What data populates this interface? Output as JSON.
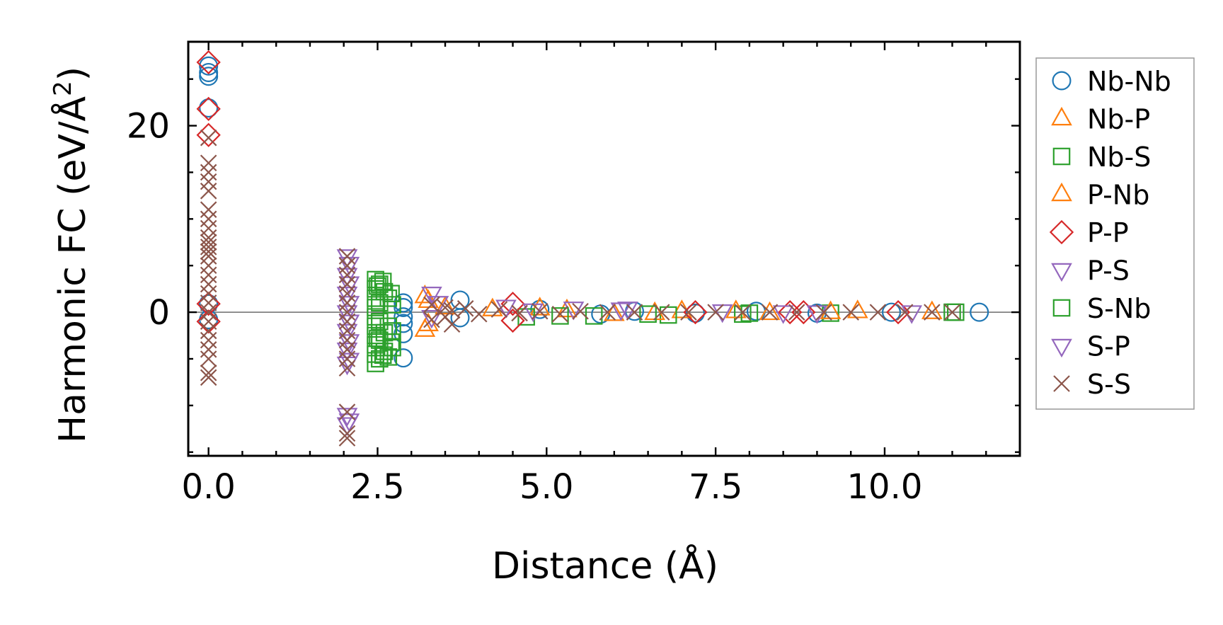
{
  "chart_data": {
    "type": "scatter",
    "title": "",
    "xlabel": "Distance (Å)",
    "ylabel_main": "Harmonic FC (eV/Å",
    "ylabel_sup": "2",
    "ylabel_close": ")",
    "xlim": [
      -0.3,
      12.0
    ],
    "ylim": [
      -15.4,
      29.0
    ],
    "xticks": [
      0.0,
      2.5,
      5.0,
      7.5,
      10.0
    ],
    "xtick_labels": [
      "0.0",
      "2.5",
      "5.0",
      "7.5",
      "10.0"
    ],
    "x_minor_step": 0.5,
    "yticks": [
      0,
      20
    ],
    "ytick_labels": [
      "0",
      "20"
    ],
    "y_minor_step": 5,
    "zero_line": true,
    "legend_position": "right, outside plot",
    "series": [
      {
        "name": "Nb-Nb",
        "marker": "circle",
        "color": "#1f77b4",
        "points": [
          [
            0.0,
            26.4
          ],
          [
            0.0,
            25.7
          ],
          [
            0.0,
            25.3
          ],
          [
            0.0,
            21.9
          ],
          [
            0.0,
            0.9
          ],
          [
            0.0,
            -0.8
          ],
          [
            2.88,
            1.0
          ],
          [
            2.88,
            0.5
          ],
          [
            2.88,
            -0.5
          ],
          [
            2.88,
            -1.2
          ],
          [
            2.88,
            -2.3
          ],
          [
            2.88,
            -4.9
          ],
          [
            3.72,
            1.3
          ],
          [
            3.72,
            -0.6
          ],
          [
            4.9,
            0.3
          ],
          [
            5.8,
            -0.2
          ],
          [
            6.3,
            0.1
          ],
          [
            7.2,
            -0.1
          ],
          [
            8.1,
            0.1
          ],
          [
            9.0,
            -0.1
          ],
          [
            10.1,
            0.0
          ],
          [
            11.4,
            0.0
          ]
        ]
      },
      {
        "name": "Nb-P",
        "marker": "triangle-up",
        "color": "#ff7f0e",
        "points": [
          [
            3.2,
            1.7
          ],
          [
            3.2,
            -1.9
          ],
          [
            3.5,
            0.5
          ],
          [
            4.9,
            0.4
          ],
          [
            6.0,
            -0.2
          ],
          [
            7.0,
            0.1
          ],
          [
            8.3,
            -0.1
          ],
          [
            9.6,
            0.1
          ],
          [
            10.7,
            0.0
          ]
        ]
      },
      {
        "name": "Nb-S",
        "marker": "square",
        "color": "#2ca02c",
        "points": [
          [
            2.47,
            3.5
          ],
          [
            2.47,
            2.5
          ],
          [
            2.47,
            1.5
          ],
          [
            2.47,
            0.5
          ],
          [
            2.47,
            -0.5
          ],
          [
            2.47,
            -1.5
          ],
          [
            2.47,
            -2.5
          ],
          [
            2.47,
            -3.5
          ],
          [
            2.47,
            -4.5
          ],
          [
            2.47,
            -5.5
          ],
          [
            2.53,
            3.0
          ],
          [
            2.53,
            1.0
          ],
          [
            2.53,
            -1.0
          ],
          [
            2.53,
            -3.0
          ],
          [
            2.53,
            -5.0
          ],
          [
            2.6,
            2.2
          ],
          [
            2.6,
            -2.2
          ],
          [
            2.6,
            -4.2
          ],
          [
            2.66,
            1.5
          ],
          [
            2.66,
            -1.5
          ],
          [
            2.66,
            -4.8
          ],
          [
            2.72,
            0.8
          ],
          [
            2.72,
            -2.0
          ],
          [
            2.72,
            -3.8
          ],
          [
            4.7,
            -0.5
          ],
          [
            5.7,
            -0.4
          ],
          [
            6.8,
            -0.3
          ],
          [
            7.9,
            -0.2
          ],
          [
            9.2,
            -0.1
          ],
          [
            11.0,
            0.0
          ]
        ]
      },
      {
        "name": "P-Nb",
        "marker": "triangle-up",
        "color": "#ff7f0e",
        "points": [
          [
            3.25,
            1.2
          ],
          [
            3.25,
            -1.3
          ],
          [
            4.2,
            0.3
          ],
          [
            5.3,
            0.2
          ],
          [
            6.6,
            -0.1
          ],
          [
            7.8,
            0.1
          ],
          [
            9.2,
            0.0
          ]
        ]
      },
      {
        "name": "P-P",
        "marker": "diamond",
        "color": "#d62728",
        "points": [
          [
            0.0,
            26.8
          ],
          [
            0.0,
            21.8
          ],
          [
            0.0,
            19.0
          ],
          [
            0.0,
            0.9
          ],
          [
            0.0,
            -1.0
          ],
          [
            4.5,
            0.9
          ],
          [
            4.5,
            -0.9
          ],
          [
            7.2,
            0.0
          ],
          [
            8.6,
            0.0
          ],
          [
            8.8,
            0.0
          ],
          [
            10.2,
            0.0
          ]
        ]
      },
      {
        "name": "P-S",
        "marker": "triangle-down",
        "color": "#9467bd",
        "points": [
          [
            2.05,
            6.0
          ],
          [
            2.05,
            4.0
          ],
          [
            2.05,
            2.0
          ],
          [
            2.05,
            0.0
          ],
          [
            2.05,
            -2.0
          ],
          [
            2.05,
            -4.0
          ],
          [
            2.05,
            -5.5
          ],
          [
            2.05,
            -11.0
          ],
          [
            2.05,
            -12.0
          ],
          [
            3.3,
            2.0
          ],
          [
            3.3,
            -0.5
          ],
          [
            4.4,
            0.6
          ],
          [
            5.4,
            0.4
          ],
          [
            6.1,
            0.3
          ],
          [
            7.6,
            0.1
          ],
          [
            9.0,
            0.0
          ],
          [
            10.4,
            0.0
          ]
        ]
      },
      {
        "name": "S-Nb",
        "marker": "square",
        "color": "#2ca02c",
        "points": [
          [
            2.5,
            2.8
          ],
          [
            2.5,
            -2.8
          ],
          [
            2.58,
            3.3
          ],
          [
            2.58,
            -4.6
          ],
          [
            2.7,
            2.0
          ],
          [
            2.7,
            -3.2
          ],
          [
            5.2,
            -0.4
          ],
          [
            6.5,
            -0.2
          ],
          [
            8.0,
            -0.1
          ],
          [
            11.05,
            0.0
          ]
        ]
      },
      {
        "name": "S-P",
        "marker": "triangle-down",
        "color": "#9467bd",
        "points": [
          [
            2.08,
            5.2
          ],
          [
            2.08,
            3.1
          ],
          [
            2.08,
            1.0
          ],
          [
            2.08,
            -1.0
          ],
          [
            2.08,
            -3.1
          ],
          [
            2.08,
            -5.1
          ],
          [
            2.08,
            -11.6
          ],
          [
            3.4,
            1.0
          ],
          [
            4.8,
            0.2
          ],
          [
            6.2,
            0.4
          ],
          [
            8.5,
            0.0
          ]
        ]
      },
      {
        "name": "S-S",
        "marker": "x",
        "color": "#8c564b",
        "points": [
          [
            0.0,
            18.7
          ],
          [
            0.0,
            16.0
          ],
          [
            0.0,
            15.0
          ],
          [
            0.0,
            14.0
          ],
          [
            0.0,
            13.0
          ],
          [
            0.0,
            11.0
          ],
          [
            0.0,
            10.0
          ],
          [
            0.0,
            9.0
          ],
          [
            0.0,
            8.0
          ],
          [
            0.0,
            7.5
          ],
          [
            0.0,
            7.0
          ],
          [
            0.0,
            6.5
          ],
          [
            0.0,
            6.0
          ],
          [
            0.0,
            5.0
          ],
          [
            0.0,
            4.0
          ],
          [
            0.0,
            3.0
          ],
          [
            0.0,
            2.0
          ],
          [
            0.0,
            1.0
          ],
          [
            0.0,
            0.0
          ],
          [
            0.0,
            -1.0
          ],
          [
            0.0,
            -2.0
          ],
          [
            0.0,
            -3.0
          ],
          [
            0.0,
            -4.0
          ],
          [
            0.0,
            -5.0
          ],
          [
            0.0,
            -6.5
          ],
          [
            0.0,
            -7.0
          ],
          [
            2.05,
            6.0
          ],
          [
            2.05,
            5.0
          ],
          [
            2.05,
            4.0
          ],
          [
            2.05,
            3.0
          ],
          [
            2.05,
            2.0
          ],
          [
            2.05,
            1.0
          ],
          [
            2.05,
            0.0
          ],
          [
            2.05,
            -1.0
          ],
          [
            2.05,
            -2.0
          ],
          [
            2.05,
            -3.0
          ],
          [
            2.05,
            -4.0
          ],
          [
            2.05,
            -5.0
          ],
          [
            2.05,
            -6.0
          ],
          [
            2.05,
            -10.7
          ],
          [
            2.05,
            -13.0
          ],
          [
            2.05,
            -13.5
          ],
          [
            3.3,
            0.8
          ],
          [
            3.3,
            -0.8
          ],
          [
            3.5,
            0.5
          ],
          [
            3.5,
            -0.5
          ],
          [
            3.6,
            0.2
          ],
          [
            3.6,
            -1.3
          ],
          [
            3.8,
            0.4
          ],
          [
            4.0,
            -0.2
          ],
          [
            4.3,
            0.3
          ],
          [
            4.6,
            -0.1
          ],
          [
            4.9,
            0.1
          ],
          [
            5.2,
            -0.2
          ],
          [
            5.5,
            0.1
          ],
          [
            5.9,
            0.0
          ],
          [
            6.3,
            0.0
          ],
          [
            6.7,
            0.0
          ],
          [
            7.1,
            0.0
          ],
          [
            7.5,
            0.0
          ],
          [
            7.9,
            0.0
          ],
          [
            8.3,
            0.0
          ],
          [
            8.7,
            0.0
          ],
          [
            9.1,
            0.0
          ],
          [
            9.5,
            0.0
          ],
          [
            9.9,
            0.0
          ],
          [
            10.3,
            0.0
          ],
          [
            10.7,
            0.0
          ],
          [
            11.0,
            0.0
          ]
        ]
      }
    ]
  }
}
